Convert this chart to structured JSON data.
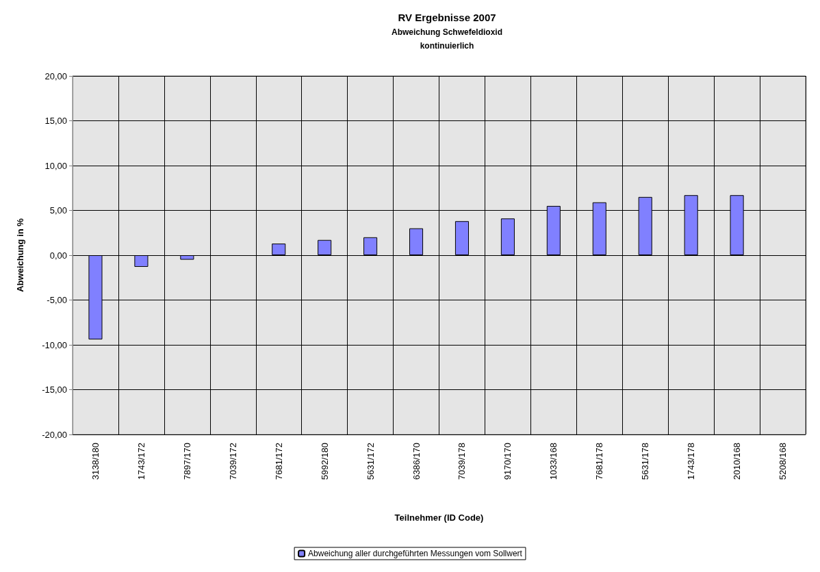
{
  "chart_data": {
    "type": "bar",
    "title": "RV Ergebnisse 2007",
    "subtitle": "Abweichung Schwefeldioxid\nkontinuierlich",
    "xlabel": "Teilnehmer (ID Code)",
    "ylabel": "Abweichung in %",
    "categories": [
      "3138/180",
      "1743/172",
      "7897/170",
      "7039/172",
      "7681/172",
      "5992/180",
      "5631/172",
      "6386/170",
      "7039/178",
      "9170/170",
      "1033/168",
      "7681/178",
      "5631/178",
      "1743/178",
      "2010/168",
      "5208/168"
    ],
    "series": [
      {
        "name": "Abweichung aller durchgeführten Messungen vom Sollwert",
        "color": "#8080ff",
        "values": [
          -9.4,
          -1.3,
          -0.5,
          null,
          1.3,
          1.7,
          2.0,
          3.0,
          3.8,
          4.1,
          5.5,
          5.9,
          6.5,
          6.7,
          6.7,
          null
        ]
      }
    ],
    "ylim": [
      -20,
      20
    ],
    "yticks": [
      {
        "value": -20,
        "label": "-20,00"
      },
      {
        "value": -15,
        "label": "-15,00"
      },
      {
        "value": -10,
        "label": "-10,00"
      },
      {
        "value": -5,
        "label": "-5,00"
      },
      {
        "value": 0,
        "label": "0,00"
      },
      {
        "value": 5,
        "label": "5,00"
      },
      {
        "value": 10,
        "label": "10,00"
      },
      {
        "value": 15,
        "label": "15,00"
      },
      {
        "value": 20,
        "label": "20,00"
      }
    ],
    "grid": true,
    "legend": "bottom"
  }
}
